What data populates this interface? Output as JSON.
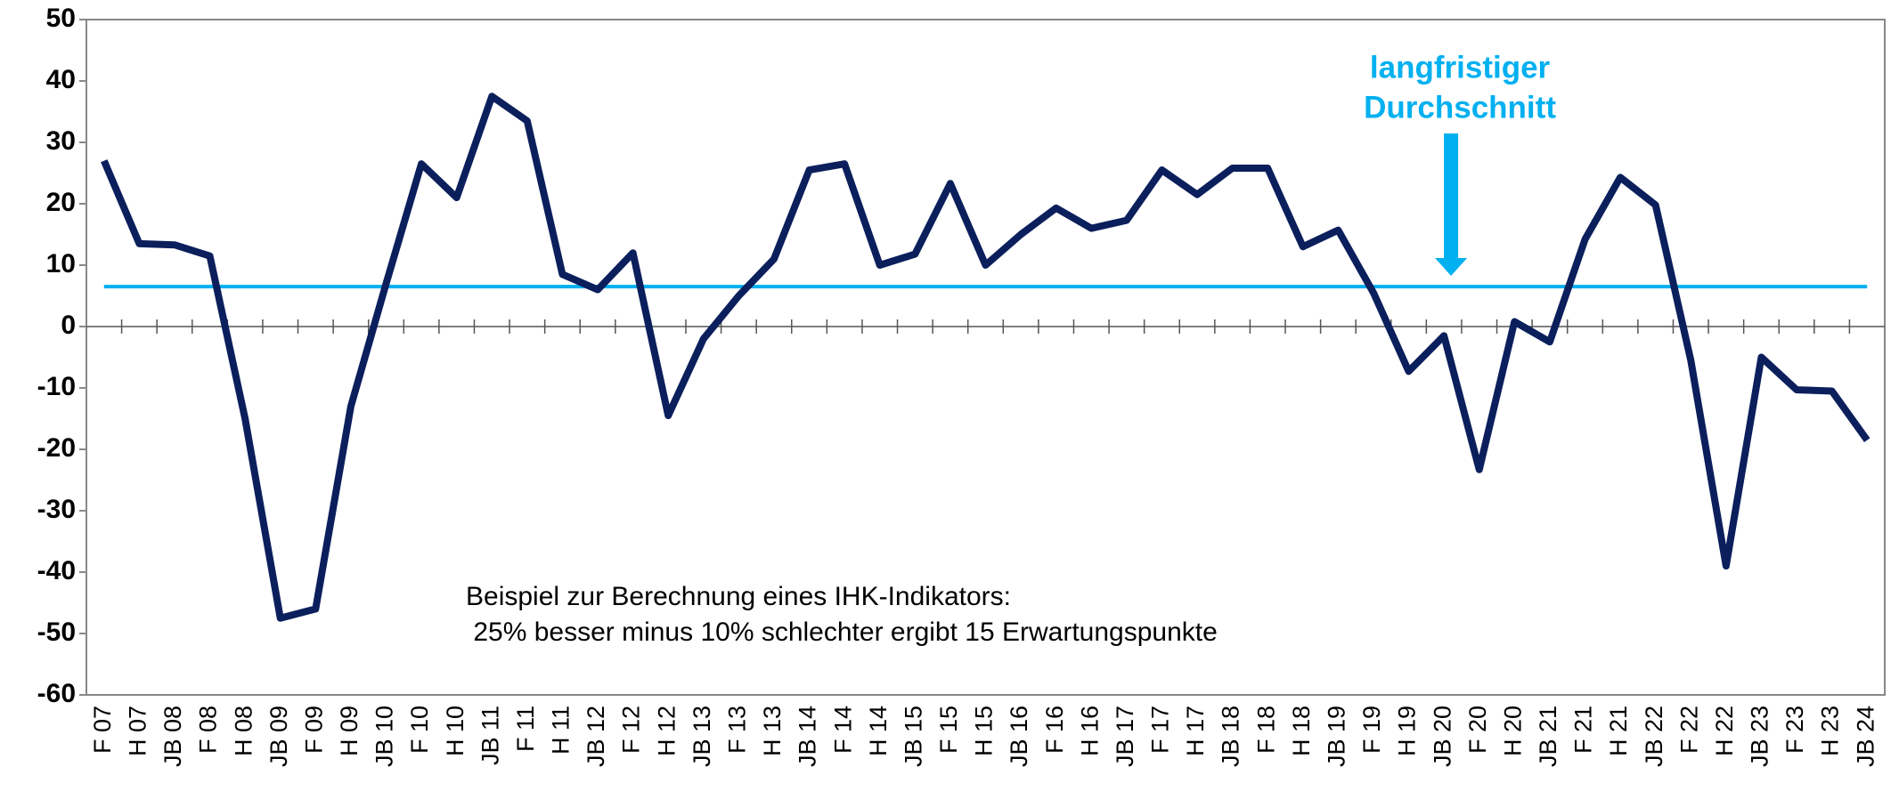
{
  "chart_data": {
    "type": "line",
    "categories": [
      "F 07",
      "H 07",
      "JB 08",
      "F 08",
      "H 08",
      "JB 09",
      "F 09",
      "H 09",
      "JB 10",
      "F 10",
      "H 10",
      "JB 11",
      "F 11",
      "H 11",
      "JB 12",
      "F 12",
      "H 12",
      "JB 13",
      "F 13",
      "H 13",
      "JB 14",
      "F 14",
      "H 14",
      "JB 15",
      "F 15",
      "H 15",
      "JB 16",
      "F 16",
      "H 16",
      "JB 17",
      "F 17",
      "H 17",
      "JB 18",
      "F 18",
      "H 18",
      "JB 19",
      "F 19",
      "H 19",
      "JB 20",
      "F 20",
      "H 20",
      "JB 21",
      "F 21",
      "H 21",
      "JB 22",
      "F 22",
      "H 22",
      "JB 23",
      "F 23",
      "H 23",
      "JB 24"
    ],
    "values": [
      27,
      13.5,
      13.3,
      11.5,
      -15,
      -47.5,
      -46,
      -13,
      7,
      26.5,
      21,
      37.5,
      33.5,
      8.5,
      6,
      12,
      -14.5,
      -2,
      5,
      11,
      25.5,
      26.5,
      10,
      11.8,
      23.3,
      10,
      15,
      19.3,
      16,
      17.3,
      25.5,
      21.5,
      25.8,
      25.8,
      13,
      15.7,
      5.5,
      -7.3,
      -1.5,
      -23.3,
      0.8,
      -2.5,
      14.2,
      24.3,
      19.8,
      -5.5,
      -39,
      -5,
      -10.3,
      -10.5,
      -18.5
    ],
    "color": "#0b1f5c",
    "average": {
      "label": [
        "langfristiger",
        "Durchschnitt"
      ],
      "value": 6.5,
      "color": "#00b0f0"
    },
    "note": [
      "Beispiel zur Berechnung eines IHK-Indikators:",
      " 25% besser minus 10% schlechter ergibt 15 Erwartungspunkte"
    ],
    "ylim": [
      -60,
      50
    ],
    "yticks": [
      -60,
      -50,
      -40,
      -30,
      -20,
      -10,
      0,
      10,
      20,
      30,
      40,
      50
    ],
    "grid": false
  }
}
